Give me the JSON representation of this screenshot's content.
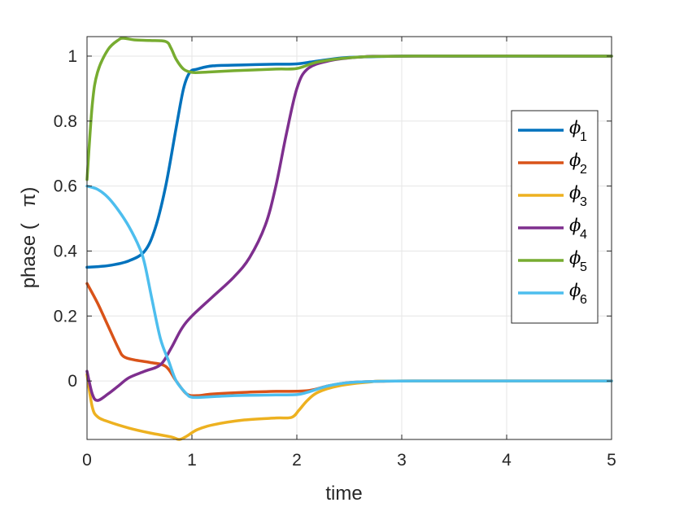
{
  "chart_data": {
    "type": "line",
    "xlabel": "time",
    "ylabel": "phase (   π)",
    "xlim": [
      0,
      5
    ],
    "ylim": [
      -0.18,
      1.06
    ],
    "grid": true,
    "legend_position": "right",
    "x_ticks": [
      0,
      1,
      2,
      3,
      4,
      5
    ],
    "x_tick_labels": [
      "0",
      "1",
      "2",
      "3",
      "4",
      "5"
    ],
    "y_ticks": [
      0,
      0.2,
      0.4,
      0.6,
      0.8,
      1
    ],
    "y_tick_labels": [
      "0",
      "0.2",
      "0.4",
      "0.6",
      "0.8",
      "1"
    ],
    "series": [
      {
        "name": "ϕ",
        "sub": "1",
        "color": "#0072BD",
        "x": [
          0,
          0.2,
          0.4,
          0.55,
          0.65,
          0.75,
          0.85,
          0.92,
          0.98,
          1.05,
          1.2,
          1.5,
          1.8,
          2.0,
          2.2,
          2.5,
          3.0,
          3.5,
          5.0
        ],
        "y": [
          0.35,
          0.355,
          0.37,
          0.4,
          0.47,
          0.6,
          0.78,
          0.9,
          0.95,
          0.96,
          0.97,
          0.973,
          0.975,
          0.976,
          0.985,
          0.996,
          1.0,
          1.0,
          1.0
        ]
      },
      {
        "name": "ϕ",
        "sub": "2",
        "color": "#D95319",
        "x": [
          0,
          0.1,
          0.2,
          0.3,
          0.35,
          0.45,
          0.6,
          0.75,
          0.85,
          0.95,
          1.05,
          1.2,
          1.5,
          1.8,
          2.1,
          2.3,
          2.5,
          2.8,
          3.2,
          5.0
        ],
        "y": [
          0.3,
          0.24,
          0.17,
          0.1,
          0.075,
          0.065,
          0.057,
          0.045,
          0.0,
          -0.04,
          -0.045,
          -0.04,
          -0.035,
          -0.032,
          -0.03,
          -0.015,
          -0.005,
          -0.001,
          0.0,
          0.0
        ]
      },
      {
        "name": "ϕ",
        "sub": "3",
        "color": "#EDB120",
        "x": [
          0,
          0.05,
          0.1,
          0.2,
          0.4,
          0.6,
          0.8,
          0.88,
          0.95,
          1.05,
          1.2,
          1.5,
          1.8,
          1.95,
          2.02,
          2.1,
          2.2,
          2.4,
          2.7,
          3.0,
          5.0
        ],
        "y": [
          0.02,
          -0.08,
          -0.11,
          -0.125,
          -0.145,
          -0.16,
          -0.172,
          -0.18,
          -0.17,
          -0.15,
          -0.135,
          -0.12,
          -0.114,
          -0.112,
          -0.09,
          -0.06,
          -0.035,
          -0.015,
          -0.003,
          0.0,
          0.0
        ]
      },
      {
        "name": "ϕ",
        "sub": "4",
        "color": "#7E2F8E",
        "x": [
          0,
          0.05,
          0.1,
          0.2,
          0.3,
          0.4,
          0.55,
          0.7,
          0.8,
          0.9,
          1.0,
          1.2,
          1.4,
          1.55,
          1.7,
          1.8,
          1.9,
          2.0,
          2.1,
          2.3,
          2.6,
          3.0,
          5.0
        ],
        "y": [
          0.03,
          -0.04,
          -0.06,
          -0.04,
          -0.015,
          0.01,
          0.03,
          0.05,
          0.1,
          0.16,
          0.2,
          0.26,
          0.32,
          0.38,
          0.48,
          0.6,
          0.76,
          0.9,
          0.96,
          0.985,
          0.997,
          1.0,
          1.0
        ]
      },
      {
        "name": "ϕ",
        "sub": "5",
        "color": "#77AC30",
        "x": [
          0,
          0.05,
          0.1,
          0.2,
          0.3,
          0.35,
          0.45,
          0.6,
          0.75,
          0.8,
          0.85,
          0.92,
          1.0,
          1.1,
          1.4,
          1.8,
          2.0,
          2.2,
          2.5,
          3.0,
          5.0
        ],
        "y": [
          0.62,
          0.85,
          0.95,
          1.02,
          1.05,
          1.055,
          1.05,
          1.048,
          1.045,
          1.025,
          0.99,
          0.96,
          0.95,
          0.95,
          0.955,
          0.96,
          0.962,
          0.982,
          0.995,
          1.0,
          1.0
        ]
      },
      {
        "name": "ϕ",
        "sub": "6",
        "color": "#4DBEEE",
        "x": [
          0,
          0.1,
          0.2,
          0.3,
          0.4,
          0.5,
          0.55,
          0.62,
          0.7,
          0.78,
          0.85,
          0.95,
          1.0,
          1.1,
          1.4,
          1.8,
          2.0,
          2.1,
          2.3,
          2.5,
          2.8,
          3.2,
          5.0
        ],
        "y": [
          0.6,
          0.59,
          0.565,
          0.525,
          0.475,
          0.41,
          0.36,
          0.25,
          0.13,
          0.06,
          0.0,
          -0.04,
          -0.05,
          -0.05,
          -0.045,
          -0.043,
          -0.042,
          -0.035,
          -0.015,
          -0.005,
          -0.001,
          0.0,
          0.0
        ]
      }
    ]
  }
}
